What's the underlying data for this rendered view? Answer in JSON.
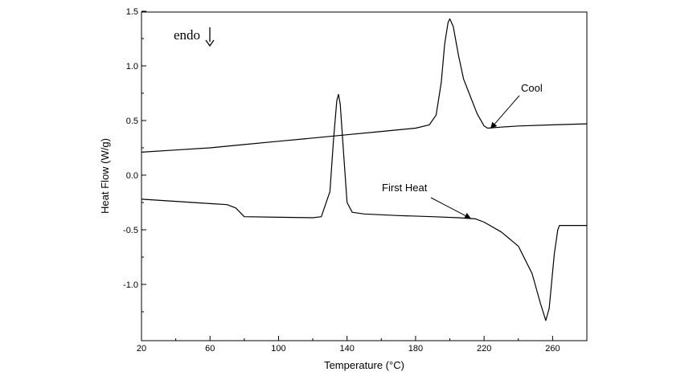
{
  "chart_data": {
    "type": "line",
    "title": "",
    "xlabel": "Temperature (°C)",
    "ylabel": "Heat Flow (W/g)",
    "xlim": [
      20,
      280
    ],
    "ylim": [
      -1.5,
      1.5
    ],
    "x_ticks": [
      20,
      60,
      100,
      140,
      180,
      220,
      260
    ],
    "x_tick_labels": [
      "20",
      "60",
      "100",
      "140",
      "180",
      "220",
      "260"
    ],
    "y_ticks": [
      1.5,
      1.0,
      0.5,
      0.0,
      -0.5,
      -1.0
    ],
    "y_tick_labels": [
      "1.5",
      "1.0",
      "0.5",
      "0.0",
      "-0.5",
      "-1.0"
    ],
    "grid": false,
    "endo_label": "endo",
    "series": [
      {
        "name": "Cool",
        "color": "#000000",
        "points": [
          [
            20,
            0.21
          ],
          [
            40,
            0.23
          ],
          [
            60,
            0.25
          ],
          [
            80,
            0.28
          ],
          [
            100,
            0.31
          ],
          [
            120,
            0.34
          ],
          [
            140,
            0.37
          ],
          [
            160,
            0.4
          ],
          [
            180,
            0.43
          ],
          [
            188,
            0.46
          ],
          [
            192,
            0.55
          ],
          [
            195,
            0.85
          ],
          [
            197,
            1.2
          ],
          [
            199,
            1.4
          ],
          [
            200,
            1.43
          ],
          [
            202,
            1.36
          ],
          [
            205,
            1.1
          ],
          [
            208,
            0.88
          ],
          [
            212,
            0.72
          ],
          [
            216,
            0.56
          ],
          [
            220,
            0.45
          ],
          [
            222,
            0.43
          ],
          [
            230,
            0.44
          ],
          [
            240,
            0.45
          ],
          [
            260,
            0.46
          ],
          [
            280,
            0.47
          ]
        ]
      },
      {
        "name": "First Heat",
        "color": "#000000",
        "points": [
          [
            20,
            -0.22
          ],
          [
            40,
            -0.24
          ],
          [
            60,
            -0.26
          ],
          [
            70,
            -0.27
          ],
          [
            75,
            -0.3
          ],
          [
            80,
            -0.38
          ],
          [
            100,
            -0.385
          ],
          [
            120,
            -0.39
          ],
          [
            125,
            -0.38
          ],
          [
            130,
            -0.15
          ],
          [
            132,
            0.3
          ],
          [
            134,
            0.68
          ],
          [
            135,
            0.74
          ],
          [
            136,
            0.65
          ],
          [
            138,
            0.2
          ],
          [
            140,
            -0.25
          ],
          [
            143,
            -0.34
          ],
          [
            150,
            -0.355
          ],
          [
            170,
            -0.37
          ],
          [
            190,
            -0.38
          ],
          [
            205,
            -0.39
          ],
          [
            215,
            -0.4
          ],
          [
            220,
            -0.43
          ],
          [
            230,
            -0.52
          ],
          [
            240,
            -0.65
          ],
          [
            248,
            -0.9
          ],
          [
            253,
            -1.18
          ],
          [
            256,
            -1.33
          ],
          [
            258,
            -1.22
          ],
          [
            261,
            -0.72
          ],
          [
            263,
            -0.5
          ],
          [
            264,
            -0.46
          ],
          [
            270,
            -0.46
          ],
          [
            280,
            -0.46
          ]
        ]
      }
    ],
    "annotations": [
      {
        "text": "Cool",
        "series": "Cool",
        "arrow_to": [
          224,
          0.43
        ]
      },
      {
        "text": "First Heat",
        "series": "First Heat",
        "arrow_to": [
          212,
          -0.395
        ]
      }
    ]
  }
}
